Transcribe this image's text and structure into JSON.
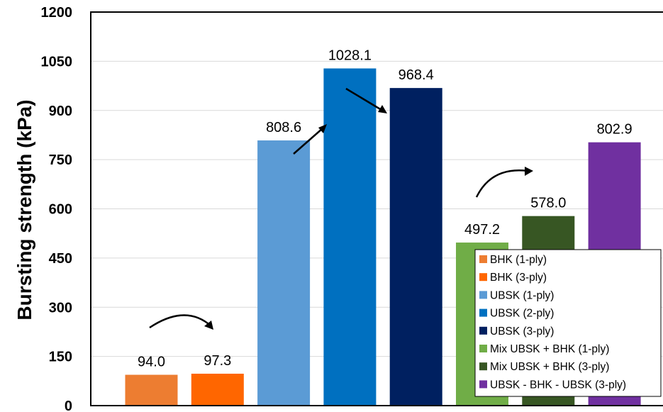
{
  "chart_data": {
    "type": "bar",
    "title": "",
    "xlabel": "",
    "ylabel": "Bursting strength (kPa)",
    "ylim": [
      0,
      1200
    ],
    "yticks": [
      0,
      150,
      300,
      450,
      600,
      750,
      900,
      1050,
      1200
    ],
    "grid": true,
    "legend_position": "bottom-right",
    "categories": [
      "BHK (1-ply)",
      "BHK (3-ply)",
      "UBSK (1-ply)",
      "UBSK (2-ply)",
      "UBSK (3-ply)",
      "Mix UBSK + BHK (1-ply)",
      "Mix UBSK + BHK (3-ply)",
      "UBSK - BHK - UBSK (3-ply)"
    ],
    "values": [
      94.0,
      97.3,
      808.6,
      1028.1,
      968.4,
      497.2,
      578.0,
      802.9
    ],
    "value_labels": [
      "94.0",
      "97.3",
      "808.6",
      "1028.1",
      "968.4",
      "497.2",
      "578.0",
      "802.9"
    ],
    "colors": [
      "#ED7D31",
      "#FF6600",
      "#5B9BD5",
      "#0070C0",
      "#002060",
      "#70AD47",
      "#375623",
      "#7030A0"
    ]
  }
}
